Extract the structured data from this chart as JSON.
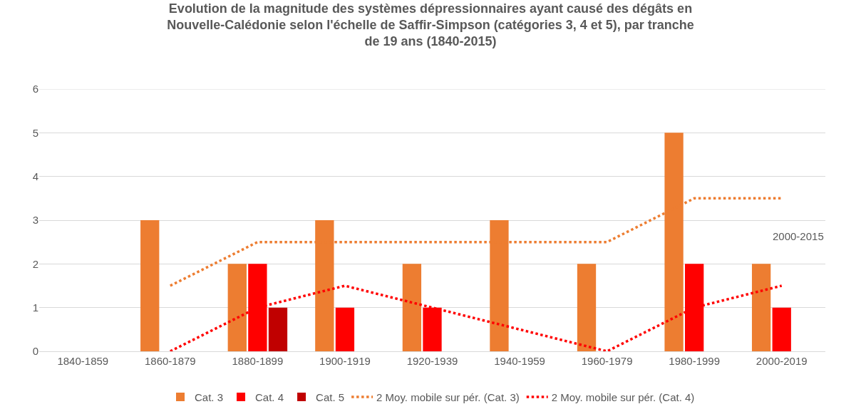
{
  "chart_data": {
    "type": "bar",
    "title": "Evolution de la magnitude des systèmes dépressionnaires ayant causé des dégâts en\nNouvelle-Calédonie selon l'échelle de Saffir-Simpson (catégories 3, 4 et 5), par tranche\nde 19 ans (1840-2015)",
    "categories": [
      "1840-1859",
      "1860-1879",
      "1880-1899",
      "1900-1919",
      "1920-1939",
      "1940-1959",
      "1960-1979",
      "1980-1999",
      "2000-2019"
    ],
    "series": [
      {
        "name": "Cat. 3",
        "color": "#ed7d31",
        "values": [
          0,
          3,
          2,
          3,
          2,
          3,
          2,
          5,
          2
        ]
      },
      {
        "name": "Cat. 4",
        "color": "#ff0000",
        "values": [
          0,
          0,
          2,
          1,
          1,
          0,
          0,
          2,
          1
        ]
      },
      {
        "name": "Cat. 5",
        "color": "#c00000",
        "values": [
          0,
          0,
          1,
          0,
          0,
          0,
          0,
          0,
          0
        ]
      },
      {
        "name": "2 Moy. mobile sur pér. (Cat. 3)",
        "type": "line",
        "line_style": "dotted",
        "color": "#ed7d31",
        "values": [
          null,
          1.5,
          2.5,
          2.5,
          2.5,
          2.5,
          2.5,
          3.5,
          3.5
        ]
      },
      {
        "name": "2 Moy. mobile sur pér. (Cat. 4)",
        "type": "line",
        "line_style": "dotted",
        "color": "#ff0000",
        "values": [
          null,
          0,
          1,
          1.5,
          1,
          0.5,
          0,
          1,
          1.5
        ]
      }
    ],
    "ylim": [
      0,
      6
    ],
    "yticks": [
      0,
      1,
      2,
      3,
      4,
      5,
      6
    ],
    "grid": "y",
    "legend": "bottom",
    "marker": "none",
    "annotations": [
      "2000-2015"
    ]
  }
}
